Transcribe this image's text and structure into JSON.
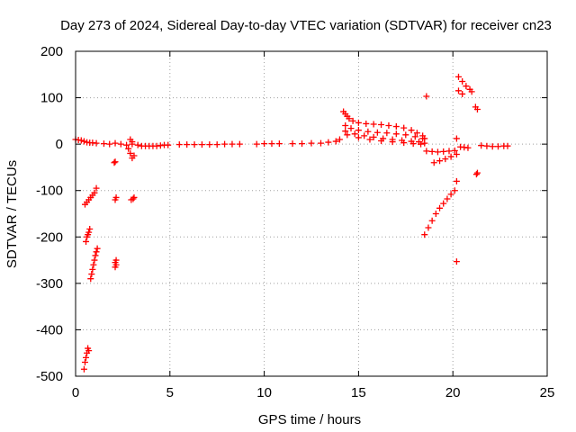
{
  "chart_data": {
    "type": "scatter",
    "title": "Day 273 of 2024, Sidereal Day-to-day VTEC variation (SDTVAR) for receiver cn23",
    "xlabel": "GPS time / hours",
    "ylabel": "SDTVAR / TECUs",
    "xlim": [
      0,
      25
    ],
    "ylim": [
      -500,
      200
    ],
    "xticks": [
      0,
      5,
      10,
      15,
      20,
      25
    ],
    "yticks": [
      -500,
      -400,
      -300,
      -200,
      -100,
      0,
      100,
      200
    ],
    "grid": true,
    "marker": "+",
    "series": [
      {
        "name": "SDTVAR",
        "color": "#ff0000",
        "points": [
          [
            0.0,
            10
          ],
          [
            0.15,
            9
          ],
          [
            0.3,
            8
          ],
          [
            0.45,
            6
          ],
          [
            0.6,
            4
          ],
          [
            0.75,
            3
          ],
          [
            0.9,
            3
          ],
          [
            1.1,
            2
          ],
          [
            1.5,
            1
          ],
          [
            1.8,
            0
          ],
          [
            2.1,
            2
          ],
          [
            2.4,
            0
          ],
          [
            2.7,
            -2
          ],
          [
            3.0,
            0
          ],
          [
            3.3,
            -2
          ],
          [
            3.5,
            -4
          ],
          [
            3.7,
            -4
          ],
          [
            3.9,
            -4
          ],
          [
            4.1,
            -4
          ],
          [
            4.3,
            -4
          ],
          [
            4.5,
            -3
          ],
          [
            4.7,
            -2
          ],
          [
            4.9,
            -2
          ],
          [
            5.5,
            -1
          ],
          [
            5.9,
            -1
          ],
          [
            6.3,
            -1
          ],
          [
            6.7,
            -1
          ],
          [
            7.1,
            -1
          ],
          [
            7.5,
            -1
          ],
          [
            7.9,
            0
          ],
          [
            8.3,
            0
          ],
          [
            8.7,
            0
          ],
          [
            9.6,
            0
          ],
          [
            10.0,
            1
          ],
          [
            10.4,
            1
          ],
          [
            10.8,
            1
          ],
          [
            11.5,
            1
          ],
          [
            12.0,
            1
          ],
          [
            12.5,
            2
          ],
          [
            13.0,
            2
          ],
          [
            13.4,
            4
          ],
          [
            13.8,
            6
          ],
          [
            14.0,
            10
          ],
          [
            14.2,
            70
          ],
          [
            14.3,
            65
          ],
          [
            14.4,
            60
          ],
          [
            14.5,
            55
          ],
          [
            14.7,
            50
          ],
          [
            15.0,
            46
          ],
          [
            15.4,
            44
          ],
          [
            15.8,
            43
          ],
          [
            16.2,
            42
          ],
          [
            16.6,
            40
          ],
          [
            17.0,
            38
          ],
          [
            17.4,
            35
          ],
          [
            17.8,
            30
          ],
          [
            18.1,
            24
          ],
          [
            18.4,
            18
          ],
          [
            18.5,
            12
          ],
          [
            14.3,
            40
          ],
          [
            14.6,
            34
          ],
          [
            15.0,
            30
          ],
          [
            15.5,
            27
          ],
          [
            16.0,
            25
          ],
          [
            16.5,
            24
          ],
          [
            17.0,
            22
          ],
          [
            17.5,
            20
          ],
          [
            18.0,
            16
          ],
          [
            18.4,
            12
          ],
          [
            14.3,
            28
          ],
          [
            14.8,
            22
          ],
          [
            15.3,
            18
          ],
          [
            15.8,
            15
          ],
          [
            16.3,
            12
          ],
          [
            16.8,
            10
          ],
          [
            17.3,
            8
          ],
          [
            17.8,
            6
          ],
          [
            18.2,
            5
          ],
          [
            18.5,
            2
          ],
          [
            14.4,
            20
          ],
          [
            15.0,
            14
          ],
          [
            15.6,
            10
          ],
          [
            16.2,
            7
          ],
          [
            16.8,
            5
          ],
          [
            17.4,
            3
          ],
          [
            17.9,
            1
          ],
          [
            18.3,
            0
          ],
          [
            18.6,
            -15
          ],
          [
            18.9,
            -16
          ],
          [
            19.2,
            -17
          ],
          [
            19.5,
            -16
          ],
          [
            19.8,
            -15
          ],
          [
            20.1,
            -14
          ],
          [
            19.0,
            -40
          ],
          [
            19.3,
            -36
          ],
          [
            19.6,
            -32
          ],
          [
            19.9,
            -27
          ],
          [
            20.2,
            -22
          ],
          [
            20.4,
            -6
          ],
          [
            20.6,
            -7
          ],
          [
            20.8,
            -8
          ],
          [
            21.5,
            -3
          ],
          [
            21.8,
            -4
          ],
          [
            22.1,
            -5
          ],
          [
            22.4,
            -5
          ],
          [
            22.7,
            -4
          ],
          [
            22.9,
            -4
          ],
          [
            0.5,
            -130
          ],
          [
            0.6,
            -125
          ],
          [
            0.7,
            -120
          ],
          [
            0.8,
            -115
          ],
          [
            0.9,
            -110
          ],
          [
            1.0,
            -105
          ],
          [
            1.1,
            -95
          ],
          [
            0.55,
            -210
          ],
          [
            0.6,
            -200
          ],
          [
            0.65,
            -195
          ],
          [
            0.7,
            -190
          ],
          [
            0.75,
            -183
          ],
          [
            0.8,
            -290
          ],
          [
            0.85,
            -280
          ],
          [
            0.9,
            -270
          ],
          [
            0.95,
            -260
          ],
          [
            1.0,
            -250
          ],
          [
            1.05,
            -240
          ],
          [
            1.1,
            -232
          ],
          [
            1.15,
            -225
          ],
          [
            0.45,
            -485
          ],
          [
            0.5,
            -470
          ],
          [
            0.55,
            -460
          ],
          [
            0.6,
            -450
          ],
          [
            0.65,
            -440
          ],
          [
            0.7,
            -445
          ],
          [
            2.05,
            -40
          ],
          [
            2.1,
            -38
          ],
          [
            2.1,
            -120
          ],
          [
            2.15,
            -115
          ],
          [
            2.1,
            -265
          ],
          [
            2.1,
            -255
          ],
          [
            2.15,
            -250
          ],
          [
            2.15,
            -260
          ],
          [
            2.8,
            -10
          ],
          [
            2.9,
            -20
          ],
          [
            3.0,
            -30
          ],
          [
            3.1,
            -25
          ],
          [
            2.9,
            10
          ],
          [
            3.0,
            5
          ],
          [
            2.95,
            -120
          ],
          [
            3.05,
            -118
          ],
          [
            3.1,
            -115
          ],
          [
            18.5,
            -195
          ],
          [
            18.7,
            -180
          ],
          [
            18.9,
            -165
          ],
          [
            19.1,
            -150
          ],
          [
            19.3,
            -138
          ],
          [
            19.5,
            -128
          ],
          [
            19.7,
            -118
          ],
          [
            19.9,
            -108
          ],
          [
            20.1,
            -100
          ],
          [
            18.6,
            103
          ],
          [
            20.2,
            12
          ],
          [
            20.2,
            -80
          ],
          [
            20.2,
            -253
          ],
          [
            20.3,
            145
          ],
          [
            20.5,
            135
          ],
          [
            20.7,
            125
          ],
          [
            20.9,
            118
          ],
          [
            21.0,
            113
          ],
          [
            20.3,
            115
          ],
          [
            20.5,
            108
          ],
          [
            21.2,
            80
          ],
          [
            21.3,
            75
          ],
          [
            21.25,
            -65
          ],
          [
            21.3,
            -62
          ]
        ]
      }
    ]
  }
}
